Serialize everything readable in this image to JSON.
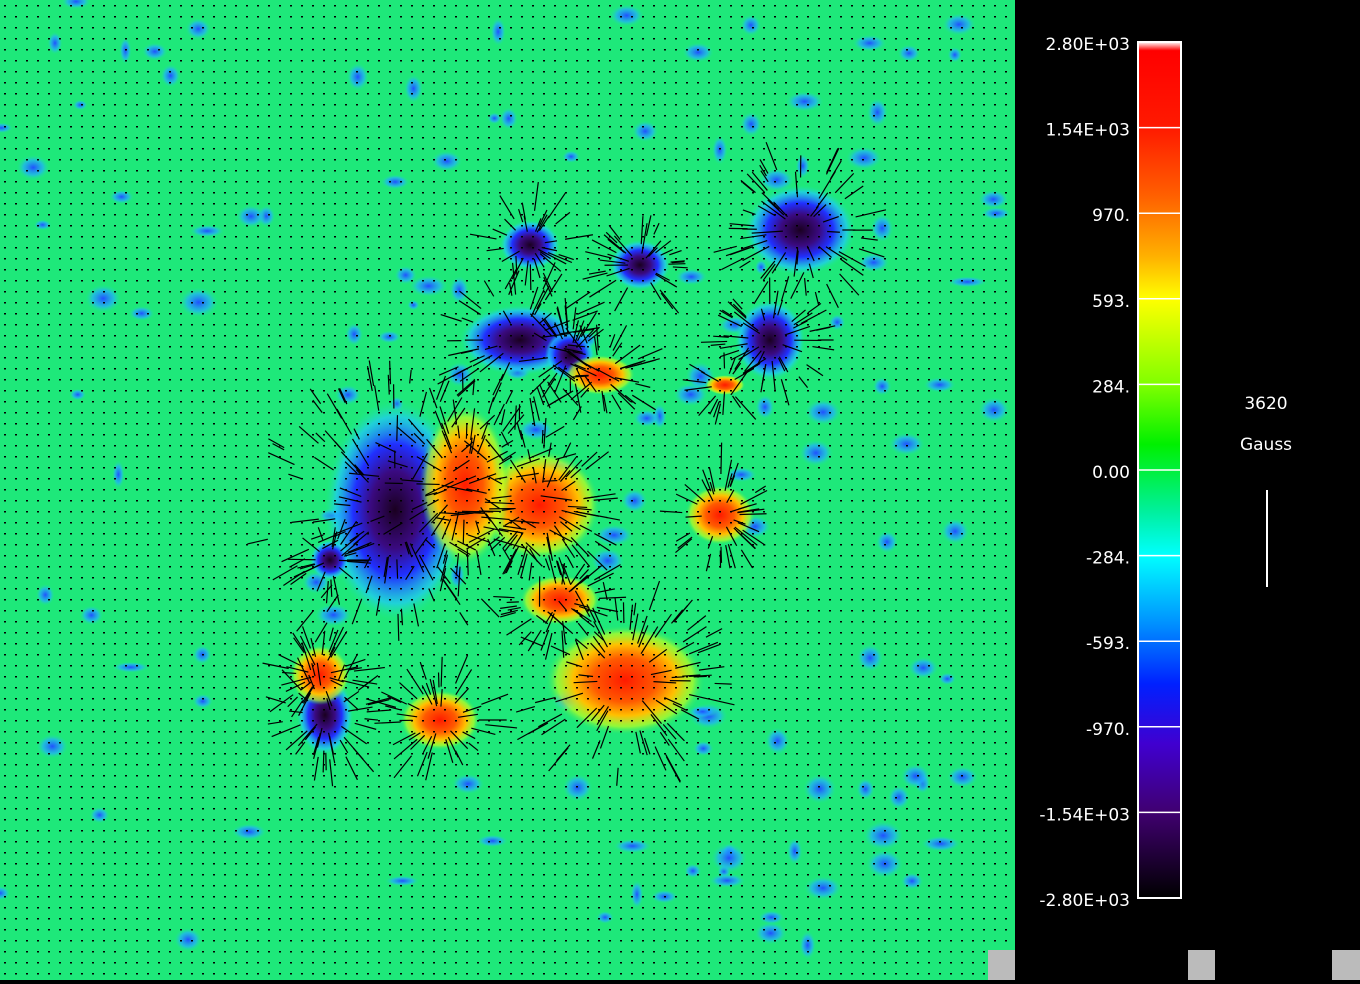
{
  "colorbar": {
    "ticks": [
      "2.80E+03",
      "1.54E+03",
      "970.",
      "593.",
      "284.",
      "0.00",
      "-284.",
      "-593.",
      "-970.",
      "-1.54E+03",
      "-2.80E+03"
    ]
  },
  "scale": {
    "value": "3620",
    "unit": "Gauss"
  }
}
